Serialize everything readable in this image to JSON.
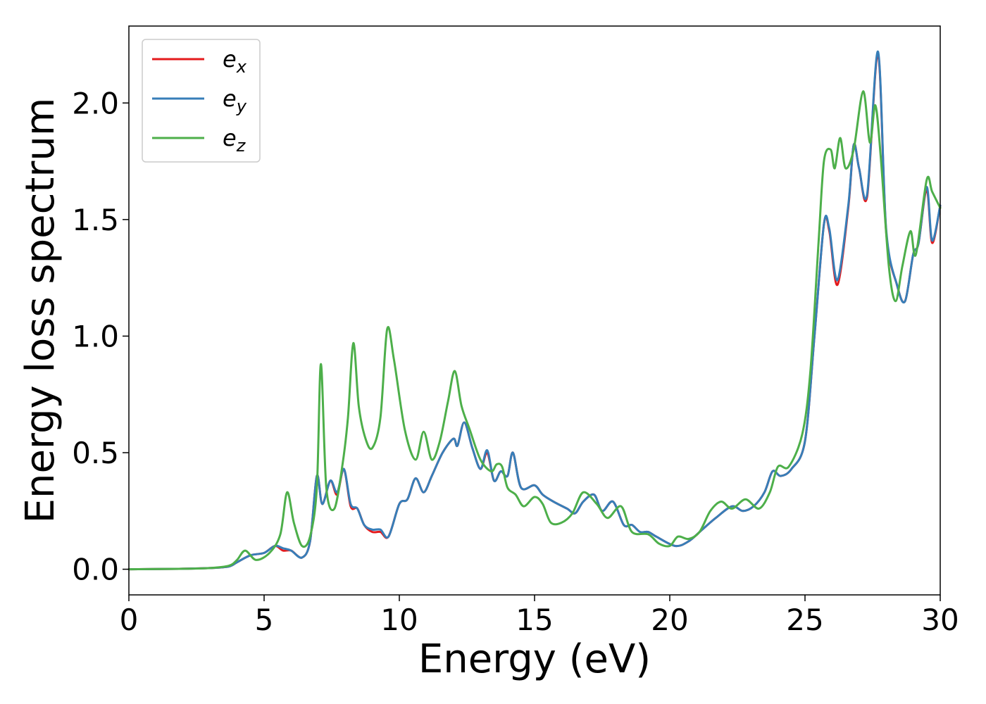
{
  "chart_data": {
    "type": "line",
    "title": "",
    "xlabel": "Energy (eV)",
    "ylabel": "Energy loss spectrum",
    "xlim": [
      0,
      30
    ],
    "ylim": [
      -0.11,
      2.33
    ],
    "x_ticks": [
      0,
      5,
      10,
      15,
      20,
      25,
      30
    ],
    "x_tick_labels": [
      "0",
      "5",
      "10",
      "15",
      "20",
      "25",
      "30"
    ],
    "y_ticks": [
      0.0,
      0.5,
      1.0,
      1.5,
      2.0
    ],
    "y_tick_labels": [
      "0.0",
      "0.5",
      "1.0",
      "1.5",
      "2.0"
    ],
    "grid": false,
    "legend_position": "top-left",
    "series": [
      {
        "name": "e_x",
        "label_main": "e",
        "label_sub": "x",
        "color": "#e41a1c",
        "points": [
          [
            0,
            0
          ],
          [
            2,
            0.002
          ],
          [
            3,
            0.005
          ],
          [
            3.7,
            0.012
          ],
          [
            4,
            0.03
          ],
          [
            4.5,
            0.06
          ],
          [
            5,
            0.07
          ],
          [
            5.4,
            0.1
          ],
          [
            5.7,
            0.08
          ],
          [
            6,
            0.08
          ],
          [
            6.4,
            0.05
          ],
          [
            6.7,
            0.12
          ],
          [
            6.95,
            0.4
          ],
          [
            7.15,
            0.28
          ],
          [
            7.45,
            0.38
          ],
          [
            7.7,
            0.32
          ],
          [
            7.95,
            0.43
          ],
          [
            8.2,
            0.27
          ],
          [
            8.45,
            0.26
          ],
          [
            8.7,
            0.19
          ],
          [
            9,
            0.16
          ],
          [
            9.3,
            0.16
          ],
          [
            9.6,
            0.14
          ],
          [
            10,
            0.28
          ],
          [
            10.3,
            0.3
          ],
          [
            10.6,
            0.39
          ],
          [
            10.9,
            0.33
          ],
          [
            11.2,
            0.4
          ],
          [
            11.6,
            0.5
          ],
          [
            12,
            0.56
          ],
          [
            12.15,
            0.53
          ],
          [
            12.4,
            0.63
          ],
          [
            12.7,
            0.52
          ],
          [
            13,
            0.43
          ],
          [
            13.25,
            0.5
          ],
          [
            13.5,
            0.38
          ],
          [
            13.75,
            0.42
          ],
          [
            14,
            0.4
          ],
          [
            14.2,
            0.5
          ],
          [
            14.5,
            0.35
          ],
          [
            15,
            0.36
          ],
          [
            15.3,
            0.32
          ],
          [
            15.7,
            0.29
          ],
          [
            16.2,
            0.26
          ],
          [
            16.5,
            0.24
          ],
          [
            16.8,
            0.29
          ],
          [
            17.2,
            0.32
          ],
          [
            17.5,
            0.25
          ],
          [
            17.9,
            0.29
          ],
          [
            18.3,
            0.19
          ],
          [
            18.6,
            0.19
          ],
          [
            18.9,
            0.16
          ],
          [
            19.2,
            0.16
          ],
          [
            19.5,
            0.14
          ],
          [
            20.2,
            0.1
          ],
          [
            20.7,
            0.12
          ],
          [
            21.2,
            0.17
          ],
          [
            21.7,
            0.22
          ],
          [
            22.3,
            0.27
          ],
          [
            22.7,
            0.25
          ],
          [
            23.1,
            0.27
          ],
          [
            23.5,
            0.33
          ],
          [
            23.8,
            0.42
          ],
          [
            24.1,
            0.4
          ],
          [
            24.5,
            0.43
          ],
          [
            25,
            0.55
          ],
          [
            25.35,
            1.0
          ],
          [
            25.7,
            1.48
          ],
          [
            25.9,
            1.45
          ],
          [
            26.2,
            1.22
          ],
          [
            26.6,
            1.55
          ],
          [
            26.8,
            1.82
          ],
          [
            27,
            1.72
          ],
          [
            27.3,
            1.6
          ],
          [
            27.7,
            2.21
          ],
          [
            28,
            1.45
          ],
          [
            28.4,
            1.22
          ],
          [
            28.7,
            1.15
          ],
          [
            29,
            1.35
          ],
          [
            29.2,
            1.4
          ],
          [
            29.5,
            1.63
          ],
          [
            29.7,
            1.4
          ],
          [
            30,
            1.56
          ]
        ]
      },
      {
        "name": "e_y",
        "label_main": "e",
        "label_sub": "y",
        "color": "#377eb8",
        "points": [
          [
            0,
            0
          ],
          [
            2,
            0.002
          ],
          [
            3,
            0.005
          ],
          [
            3.7,
            0.012
          ],
          [
            4,
            0.03
          ],
          [
            4.5,
            0.06
          ],
          [
            5,
            0.07
          ],
          [
            5.4,
            0.1
          ],
          [
            5.7,
            0.09
          ],
          [
            6,
            0.08
          ],
          [
            6.4,
            0.05
          ],
          [
            6.7,
            0.12
          ],
          [
            6.95,
            0.4
          ],
          [
            7.15,
            0.28
          ],
          [
            7.45,
            0.38
          ],
          [
            7.7,
            0.33
          ],
          [
            7.95,
            0.43
          ],
          [
            8.2,
            0.28
          ],
          [
            8.45,
            0.26
          ],
          [
            8.7,
            0.19
          ],
          [
            9,
            0.17
          ],
          [
            9.3,
            0.17
          ],
          [
            9.6,
            0.14
          ],
          [
            10,
            0.28
          ],
          [
            10.3,
            0.3
          ],
          [
            10.6,
            0.39
          ],
          [
            10.9,
            0.33
          ],
          [
            11.2,
            0.4
          ],
          [
            11.6,
            0.5
          ],
          [
            12,
            0.56
          ],
          [
            12.15,
            0.53
          ],
          [
            12.4,
            0.63
          ],
          [
            12.7,
            0.52
          ],
          [
            13,
            0.43
          ],
          [
            13.25,
            0.51
          ],
          [
            13.5,
            0.38
          ],
          [
            13.75,
            0.42
          ],
          [
            14,
            0.4
          ],
          [
            14.2,
            0.5
          ],
          [
            14.5,
            0.35
          ],
          [
            15,
            0.36
          ],
          [
            15.3,
            0.32
          ],
          [
            15.7,
            0.29
          ],
          [
            16.2,
            0.26
          ],
          [
            16.5,
            0.24
          ],
          [
            16.8,
            0.29
          ],
          [
            17.2,
            0.32
          ],
          [
            17.5,
            0.25
          ],
          [
            17.9,
            0.29
          ],
          [
            18.3,
            0.19
          ],
          [
            18.6,
            0.19
          ],
          [
            18.9,
            0.16
          ],
          [
            19.2,
            0.16
          ],
          [
            19.5,
            0.14
          ],
          [
            20.2,
            0.1
          ],
          [
            20.7,
            0.12
          ],
          [
            21.2,
            0.17
          ],
          [
            21.7,
            0.22
          ],
          [
            22.3,
            0.27
          ],
          [
            22.7,
            0.25
          ],
          [
            23.1,
            0.27
          ],
          [
            23.5,
            0.33
          ],
          [
            23.8,
            0.42
          ],
          [
            24.1,
            0.4
          ],
          [
            24.5,
            0.43
          ],
          [
            25,
            0.55
          ],
          [
            25.35,
            1.0
          ],
          [
            25.7,
            1.48
          ],
          [
            25.9,
            1.46
          ],
          [
            26.2,
            1.24
          ],
          [
            26.6,
            1.56
          ],
          [
            26.8,
            1.82
          ],
          [
            27,
            1.72
          ],
          [
            27.3,
            1.61
          ],
          [
            27.7,
            2.22
          ],
          [
            28,
            1.46
          ],
          [
            28.4,
            1.22
          ],
          [
            28.7,
            1.15
          ],
          [
            29,
            1.35
          ],
          [
            29.2,
            1.4
          ],
          [
            29.5,
            1.64
          ],
          [
            29.7,
            1.41
          ],
          [
            30,
            1.56
          ]
        ]
      },
      {
        "name": "e_z",
        "label_main": "e",
        "label_sub": "z",
        "color": "#4daf4a",
        "points": [
          [
            0,
            0
          ],
          [
            2,
            0.002
          ],
          [
            3,
            0.005
          ],
          [
            3.7,
            0.015
          ],
          [
            4,
            0.04
          ],
          [
            4.3,
            0.08
          ],
          [
            4.7,
            0.04
          ],
          [
            5.2,
            0.07
          ],
          [
            5.6,
            0.15
          ],
          [
            5.85,
            0.33
          ],
          [
            6.1,
            0.2
          ],
          [
            6.4,
            0.1
          ],
          [
            6.7,
            0.14
          ],
          [
            6.95,
            0.35
          ],
          [
            7.1,
            0.88
          ],
          [
            7.3,
            0.35
          ],
          [
            7.6,
            0.26
          ],
          [
            7.9,
            0.45
          ],
          [
            8.1,
            0.65
          ],
          [
            8.3,
            0.97
          ],
          [
            8.5,
            0.7
          ],
          [
            8.75,
            0.56
          ],
          [
            9,
            0.52
          ],
          [
            9.3,
            0.65
          ],
          [
            9.55,
            1.03
          ],
          [
            9.8,
            0.9
          ],
          [
            10.2,
            0.6
          ],
          [
            10.6,
            0.47
          ],
          [
            10.9,
            0.59
          ],
          [
            11.2,
            0.47
          ],
          [
            11.5,
            0.55
          ],
          [
            11.8,
            0.72
          ],
          [
            12.05,
            0.85
          ],
          [
            12.3,
            0.7
          ],
          [
            12.6,
            0.6
          ],
          [
            13,
            0.47
          ],
          [
            13.4,
            0.42
          ],
          [
            13.6,
            0.45
          ],
          [
            13.8,
            0.44
          ],
          [
            14,
            0.35
          ],
          [
            14.3,
            0.32
          ],
          [
            14.6,
            0.27
          ],
          [
            15,
            0.31
          ],
          [
            15.3,
            0.28
          ],
          [
            15.6,
            0.2
          ],
          [
            16,
            0.2
          ],
          [
            16.4,
            0.24
          ],
          [
            16.8,
            0.33
          ],
          [
            17.3,
            0.28
          ],
          [
            17.7,
            0.22
          ],
          [
            18.2,
            0.27
          ],
          [
            18.6,
            0.16
          ],
          [
            19.2,
            0.15
          ],
          [
            19.6,
            0.11
          ],
          [
            20,
            0.1
          ],
          [
            20.3,
            0.14
          ],
          [
            20.7,
            0.13
          ],
          [
            21.1,
            0.16
          ],
          [
            21.5,
            0.25
          ],
          [
            21.9,
            0.29
          ],
          [
            22.3,
            0.26
          ],
          [
            22.8,
            0.3
          ],
          [
            23.3,
            0.26
          ],
          [
            23.7,
            0.33
          ],
          [
            24,
            0.44
          ],
          [
            24.4,
            0.44
          ],
          [
            24.9,
            0.58
          ],
          [
            25.2,
            0.85
          ],
          [
            25.5,
            1.4
          ],
          [
            25.7,
            1.75
          ],
          [
            25.95,
            1.8
          ],
          [
            26.1,
            1.72
          ],
          [
            26.3,
            1.85
          ],
          [
            26.5,
            1.72
          ],
          [
            26.8,
            1.8
          ],
          [
            27.15,
            2.05
          ],
          [
            27.4,
            1.83
          ],
          [
            27.6,
            1.99
          ],
          [
            27.8,
            1.77
          ],
          [
            28.1,
            1.3
          ],
          [
            28.35,
            1.15
          ],
          [
            28.6,
            1.3
          ],
          [
            28.9,
            1.45
          ],
          [
            29.1,
            1.35
          ],
          [
            29.5,
            1.67
          ],
          [
            29.7,
            1.62
          ],
          [
            30,
            1.55
          ]
        ]
      }
    ]
  }
}
